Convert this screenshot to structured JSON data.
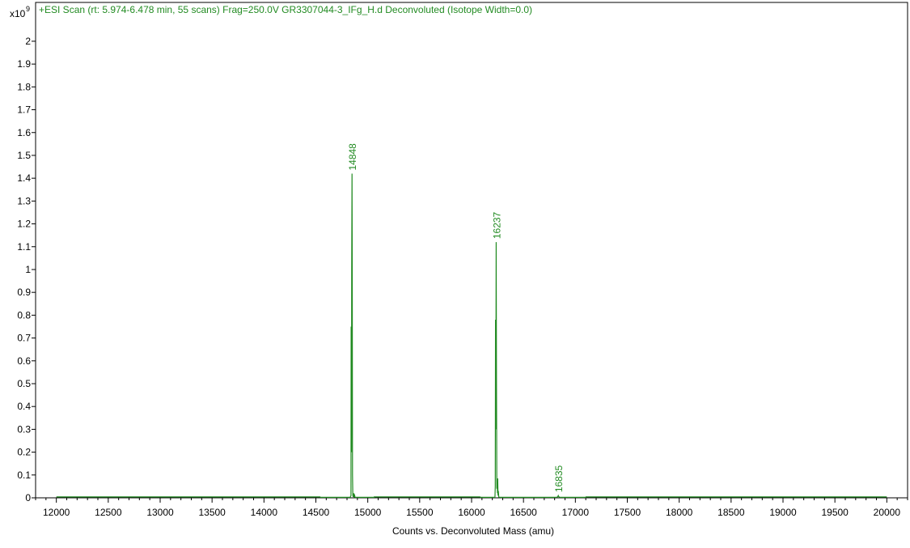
{
  "chart_data": {
    "type": "line",
    "title": "+ESI Scan (rt: 5.974-6.478 min, 55 scans) Frag=250.0V GR3307044-3_IFg_H.d  Deconvoluted (Isotope Width=0.0)",
    "xlabel": "Counts vs. Deconvoluted Mass (amu)",
    "ylabel": "",
    "y_multiplier_base": "x10",
    "y_multiplier_exp": "9",
    "xlim": [
      11800,
      20200
    ],
    "ylim": [
      0,
      2.17
    ],
    "x_ticks": [
      12000,
      12500,
      13000,
      13500,
      14000,
      14500,
      15000,
      15500,
      16000,
      16500,
      17000,
      17500,
      18000,
      18500,
      19000,
      19500,
      20000
    ],
    "y_ticks": [
      0,
      0.1,
      0.2,
      0.3,
      0.4,
      0.5,
      0.6,
      0.7,
      0.8,
      0.9,
      1,
      1.1,
      1.2,
      1.3,
      1.4,
      1.5,
      1.6,
      1.7,
      1.8,
      1.9,
      2
    ],
    "grid": false,
    "legend": "none",
    "series": [
      {
        "color": "#228b22",
        "x": [
          12000,
          14540,
          14545,
          14830,
          14838,
          14840,
          14843,
          14845,
          14848,
          14851,
          14853,
          14856,
          14860,
          14866,
          14870,
          14872,
          14876,
          14880,
          15060,
          15062,
          16080,
          16090,
          16225,
          16228,
          16231,
          16234,
          16237,
          16240,
          16243,
          16246,
          16249,
          16252,
          16255,
          16258,
          16262,
          16270,
          16820,
          16830,
          16835,
          16840,
          16850,
          17100,
          17102,
          20000
        ],
        "y": [
          0.004,
          0.004,
          0.002,
          0.002,
          0.01,
          0.75,
          0.2,
          1.0,
          1.42,
          0.95,
          0.1,
          0.01,
          0.004,
          0.02,
          0.002,
          0.015,
          0.004,
          0.002,
          0.002,
          0.004,
          0.004,
          0.002,
          0.002,
          0.05,
          0.78,
          0.3,
          1.12,
          0.5,
          0.04,
          0.08,
          0.02,
          0.085,
          0.01,
          0.03,
          0.004,
          0.002,
          0.002,
          0.005,
          0.01,
          0.005,
          0.002,
          0.002,
          0.004,
          0.004
        ]
      }
    ],
    "peak_labels": [
      {
        "text": "14848",
        "x": 14848,
        "y": 1.42
      },
      {
        "text": "16237",
        "x": 16237,
        "y": 1.12
      },
      {
        "text": "16835",
        "x": 16835,
        "y": 0.01
      }
    ]
  }
}
